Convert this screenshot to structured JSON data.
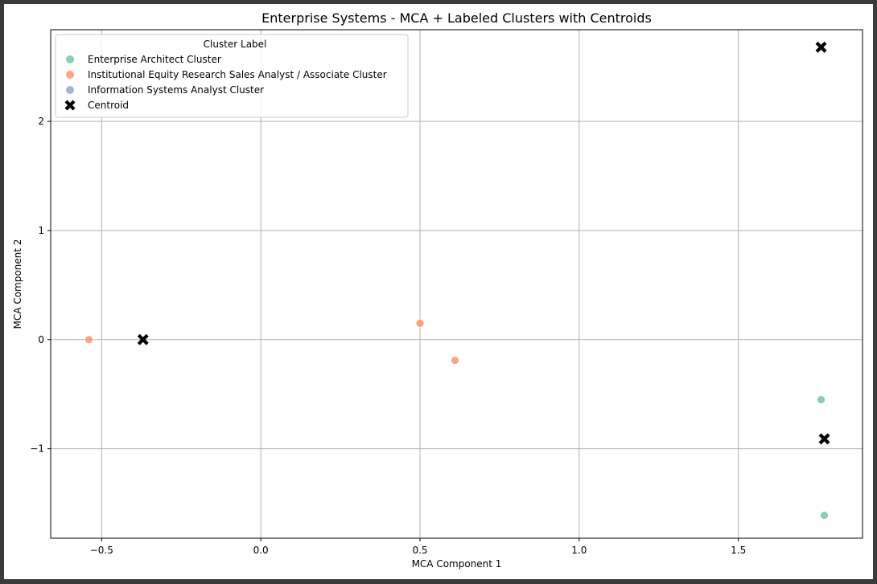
{
  "chart_data": {
    "type": "scatter",
    "title": "Enterprise Systems - MCA + Labeled Clusters with Centroids",
    "xlabel": "MCA Component 1",
    "ylabel": "MCA Component 2",
    "xlim": [
      -0.66,
      1.89
    ],
    "ylim": [
      -1.82,
      2.84
    ],
    "xticks": [
      -0.5,
      0.0,
      0.5,
      1.0,
      1.5
    ],
    "xtick_labels": [
      "−0.5",
      "0.0",
      "0.5",
      "1.0",
      "1.5"
    ],
    "yticks": [
      -1,
      0,
      1,
      2
    ],
    "ytick_labels": [
      "−1",
      "0",
      "1",
      "2"
    ],
    "grid": true,
    "legend": {
      "title": "Cluster Label",
      "placement": "top-left"
    },
    "series": [
      {
        "name": "Enterprise Architect Cluster",
        "color": "#66c2a5",
        "marker": "circle",
        "points": [
          {
            "x": 1.76,
            "y": -0.55
          },
          {
            "x": 1.77,
            "y": -1.61
          }
        ]
      },
      {
        "name": "Institutional Equity Research Sales Analyst / Associate Cluster",
        "color": "#fc8d62",
        "marker": "circle",
        "points": [
          {
            "x": -0.54,
            "y": 0.0
          },
          {
            "x": 0.5,
            "y": 0.15
          },
          {
            "x": 0.61,
            "y": -0.19
          }
        ]
      },
      {
        "name": "Information Systems Analyst Cluster",
        "color": "#8da0cb",
        "marker": "circle",
        "points": []
      },
      {
        "name": "Centroid",
        "color": "#000000",
        "marker": "x",
        "points": [
          {
            "x": -0.37,
            "y": 0.0
          },
          {
            "x": 1.76,
            "y": 2.68
          },
          {
            "x": 1.77,
            "y": -0.91
          }
        ]
      }
    ]
  }
}
